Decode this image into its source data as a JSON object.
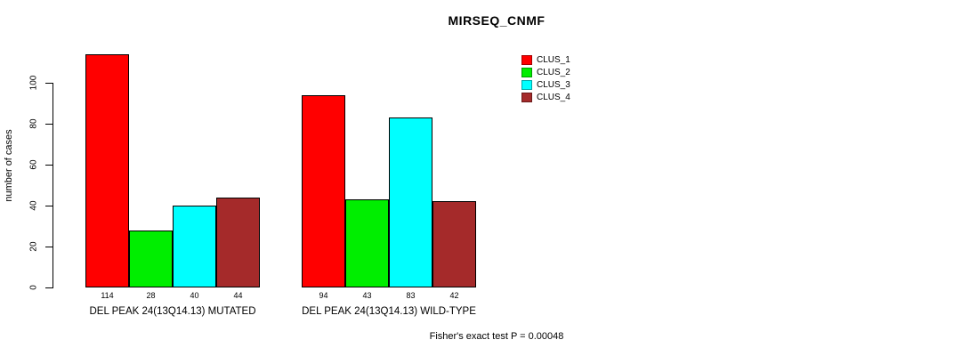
{
  "chart_data": {
    "type": "bar",
    "title": "MIRSEQ_CNMF",
    "xlabel": "",
    "ylabel": "number of cases",
    "ylim": [
      0,
      115
    ],
    "yticks": [
      0,
      20,
      40,
      60,
      80,
      100
    ],
    "grid": false,
    "legend_position": "top-right",
    "categories": [
      "DEL PEAK 24(13Q14.13) MUTATED",
      "DEL PEAK 24(13Q14.13) WILD-TYPE"
    ],
    "series": [
      {
        "name": "CLUS_1",
        "color": "#ff0000",
        "values": [
          114,
          94
        ]
      },
      {
        "name": "CLUS_2",
        "color": "#00ee00",
        "values": [
          28,
          43
        ]
      },
      {
        "name": "CLUS_3",
        "color": "#00ffff",
        "values": [
          40,
          83
        ]
      },
      {
        "name": "CLUS_4",
        "color": "#a52a2a",
        "values": [
          44,
          42
        ]
      }
    ],
    "bar_value_labels": [
      [
        "114",
        "28",
        "40",
        "44"
      ],
      [
        "94",
        "43",
        "83",
        "42"
      ]
    ],
    "annotation": "Fisher's exact test P = 0.00048",
    "axis_color": "#000000",
    "text_color": "#000000"
  }
}
